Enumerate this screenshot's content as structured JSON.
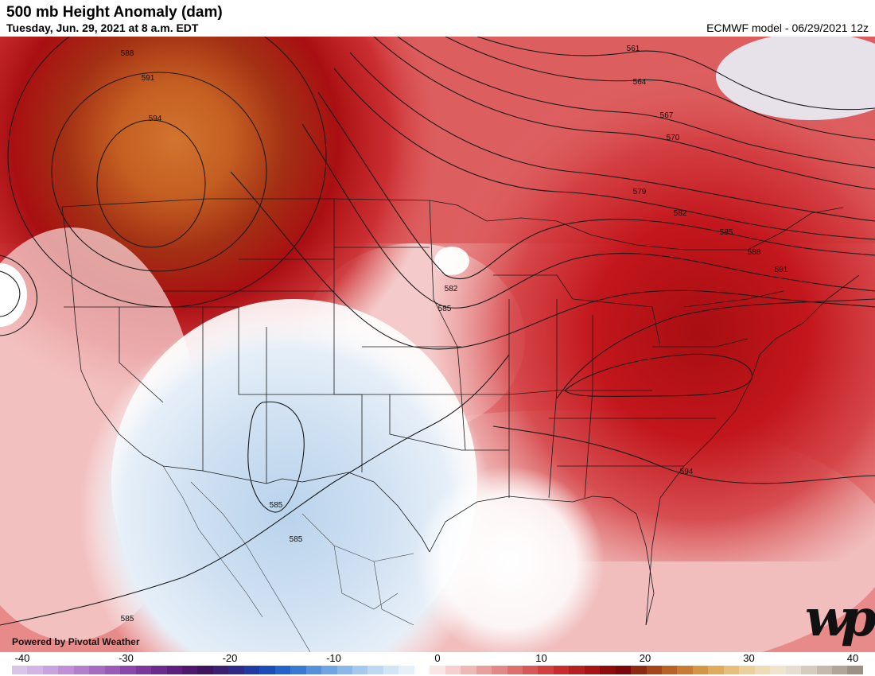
{
  "header": {
    "title": "500 mb Height Anomaly (dam)",
    "subtitle": "Tuesday, Jun. 29, 2021 at 8 a.m. EDT",
    "model": "ECMWF model - 06/29/2021 12z"
  },
  "credit": {
    "powered_by": "Powered by Pivotal Weather",
    "logo_text": "wp"
  },
  "contour_labels": [
    "588",
    "591",
    "594",
    "561",
    "564",
    "567",
    "570",
    "579",
    "582",
    "585",
    "588",
    "591",
    "582",
    "585",
    "594",
    "585",
    "585",
    "585"
  ],
  "colorbar": {
    "ticks": [
      "-40",
      "-30",
      "-20",
      "-10",
      "0",
      "10",
      "20",
      "30",
      "40"
    ],
    "colors": [
      "#d9c4ec",
      "#d2b4e6",
      "#c9a3df",
      "#c08fd7",
      "#b27fcd",
      "#a56cc2",
      "#9a5ab8",
      "#8a47ac",
      "#7a379e",
      "#6b2a8f",
      "#5d2080",
      "#4e1870",
      "#401361",
      "#3a1f72",
      "#2d2a8a",
      "#1f3aa0",
      "#1a4db8",
      "#2563c8",
      "#3a79d2",
      "#5590db",
      "#6fa5e2",
      "#8ab8e8",
      "#a4c9ee",
      "#bcd8f3",
      "#d2e5f7",
      "#e6f0fa",
      "#ffffff",
      "#fbe6e6",
      "#f6cfcf",
      "#f0b7b7",
      "#ea9f9f",
      "#e48787",
      "#de6f6f",
      "#d85757",
      "#d24040",
      "#c82c2c",
      "#b81f1f",
      "#a61414",
      "#8f0c0c",
      "#7a0808",
      "#8c2a10",
      "#a3461a",
      "#b86226",
      "#c97b34",
      "#d69544",
      "#dfac5c",
      "#e6c07a",
      "#ebd09a",
      "#efdcb6",
      "#f1e4cc",
      "#e6ddd0",
      "#d6ccbe",
      "#c4b9ab",
      "#b0a597",
      "#9c9183"
    ]
  }
}
